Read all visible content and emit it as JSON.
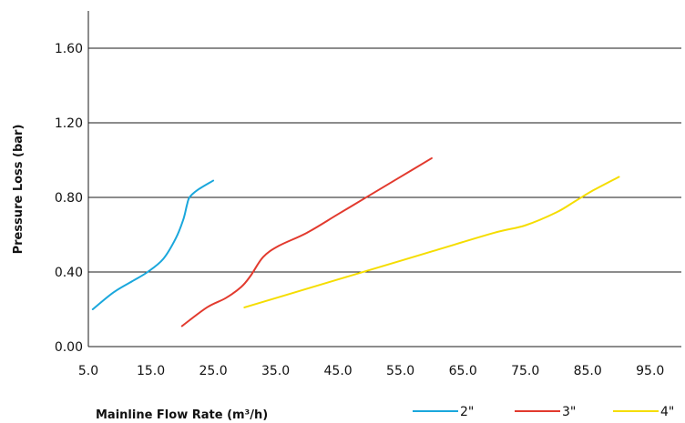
{
  "chart_data": {
    "type": "line",
    "title": "",
    "xlabel": "Mainline Flow Rate (m³/h)",
    "ylabel": "Pressure Loss (bar)",
    "xlim": [
      5,
      100
    ],
    "ylim": [
      0,
      1.8
    ],
    "x_ticks": [
      5,
      15,
      25,
      35,
      45,
      55,
      65,
      75,
      85,
      95
    ],
    "x_tick_labels": [
      "5.0",
      "15.0",
      "25.0",
      "35.0",
      "45.0",
      "55.0",
      "65.0",
      "75.0",
      "85.0",
      "95.0"
    ],
    "y_ticks": [
      0,
      0.4,
      0.8,
      1.2,
      1.6
    ],
    "y_tick_labels": [
      "0.00",
      "0.40",
      "0.80",
      "1.20",
      "1.60"
    ],
    "grid": "horizontal",
    "legend_position": "bottom-right",
    "series": [
      {
        "name": "2\"",
        "color": "#1aa7dc",
        "x": [
          5.7,
          9,
          12,
          14.5,
          17,
          19,
          20.2,
          20.8,
          21.2,
          22.5,
          25
        ],
        "y": [
          0.2,
          0.29,
          0.35,
          0.4,
          0.47,
          0.58,
          0.68,
          0.76,
          0.8,
          0.84,
          0.89
        ]
      },
      {
        "name": "3\"",
        "color": "#e23a2e",
        "x": [
          20,
          24,
          27,
          29.5,
          31,
          33,
          35.5,
          40,
          45,
          50,
          55,
          60
        ],
        "y": [
          0.11,
          0.21,
          0.26,
          0.32,
          0.38,
          0.48,
          0.54,
          0.61,
          0.71,
          0.81,
          0.91,
          1.01
        ]
      },
      {
        "name": "4\"",
        "color": "#f5dd00",
        "x": [
          30,
          40,
          50,
          60,
          70,
          75,
          80,
          83,
          86,
          90
        ],
        "y": [
          0.21,
          0.31,
          0.41,
          0.51,
          0.61,
          0.65,
          0.72,
          0.78,
          0.84,
          0.91
        ]
      }
    ]
  }
}
